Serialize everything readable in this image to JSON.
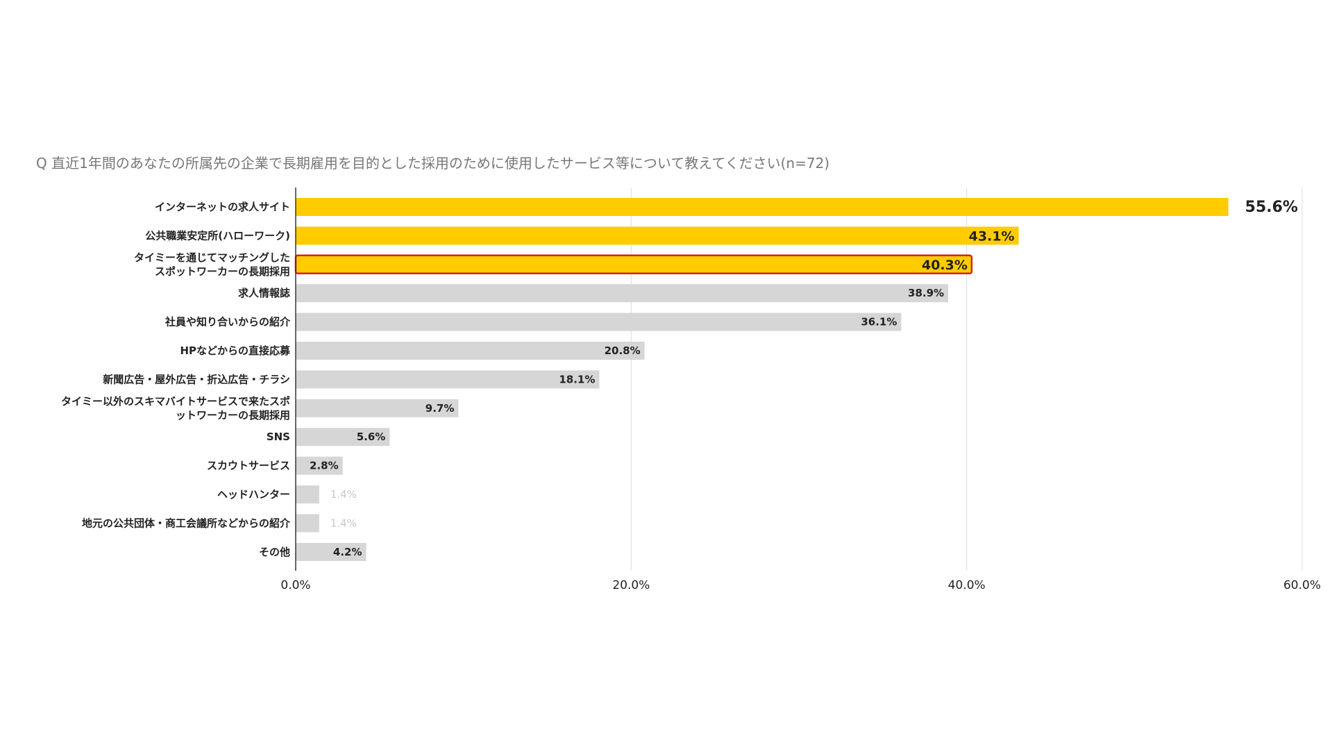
{
  "chart_data": {
    "type": "bar",
    "orientation": "horizontal",
    "title": "Q 直近1年間のあなたの所属先の企業で長期雇用を目的とした採用のために使用したサービス等について教えてください(n=72)",
    "categories": [
      [
        "インターネットの求人サイト"
      ],
      [
        "公共職業安定所(ハローワーク)"
      ],
      [
        "タイミーを通じてマッチングした",
        "スポットワーカーの長期採用"
      ],
      [
        "求人情報誌"
      ],
      [
        "社員や知り合いからの紹介"
      ],
      [
        "HPなどからの直接応募"
      ],
      [
        "新聞広告・屋外広告・折込広告・チラシ"
      ],
      [
        "タイミー以外のスキマバイトサービスで来たスポ",
        "ットワーカーの長期採用"
      ],
      [
        "SNS"
      ],
      [
        "スカウトサービス"
      ],
      [
        "ヘッドハンター"
      ],
      [
        "地元の公共団体・商工会議所などからの紹介"
      ],
      [
        "その他"
      ]
    ],
    "values": [
      55.6,
      43.1,
      40.3,
      38.9,
      36.1,
      20.8,
      18.1,
      9.7,
      5.6,
      2.8,
      1.4,
      1.4,
      4.2
    ],
    "value_labels": [
      "55.6%",
      "43.1%",
      "40.3%",
      "38.9%",
      "36.1%",
      "20.8%",
      "18.1%",
      "9.7%",
      "5.6%",
      "2.8%",
      "1.4%",
      "1.4%",
      "4.2%"
    ],
    "highlight_indices": [
      0,
      1,
      2
    ],
    "outlined_index": 2,
    "xlim": [
      0,
      60
    ],
    "xticks": [
      0,
      20,
      40,
      60
    ],
    "xtick_labels": [
      "0.0%",
      "20.0%",
      "40.0%",
      "60.0%"
    ],
    "grid": true,
    "legend": "none",
    "colors": {
      "highlight": "#FFCC00",
      "default": "#D6D6D6",
      "outline": "#E01E1E",
      "grid": "#DDDDDD",
      "axis": "#333333"
    }
  }
}
